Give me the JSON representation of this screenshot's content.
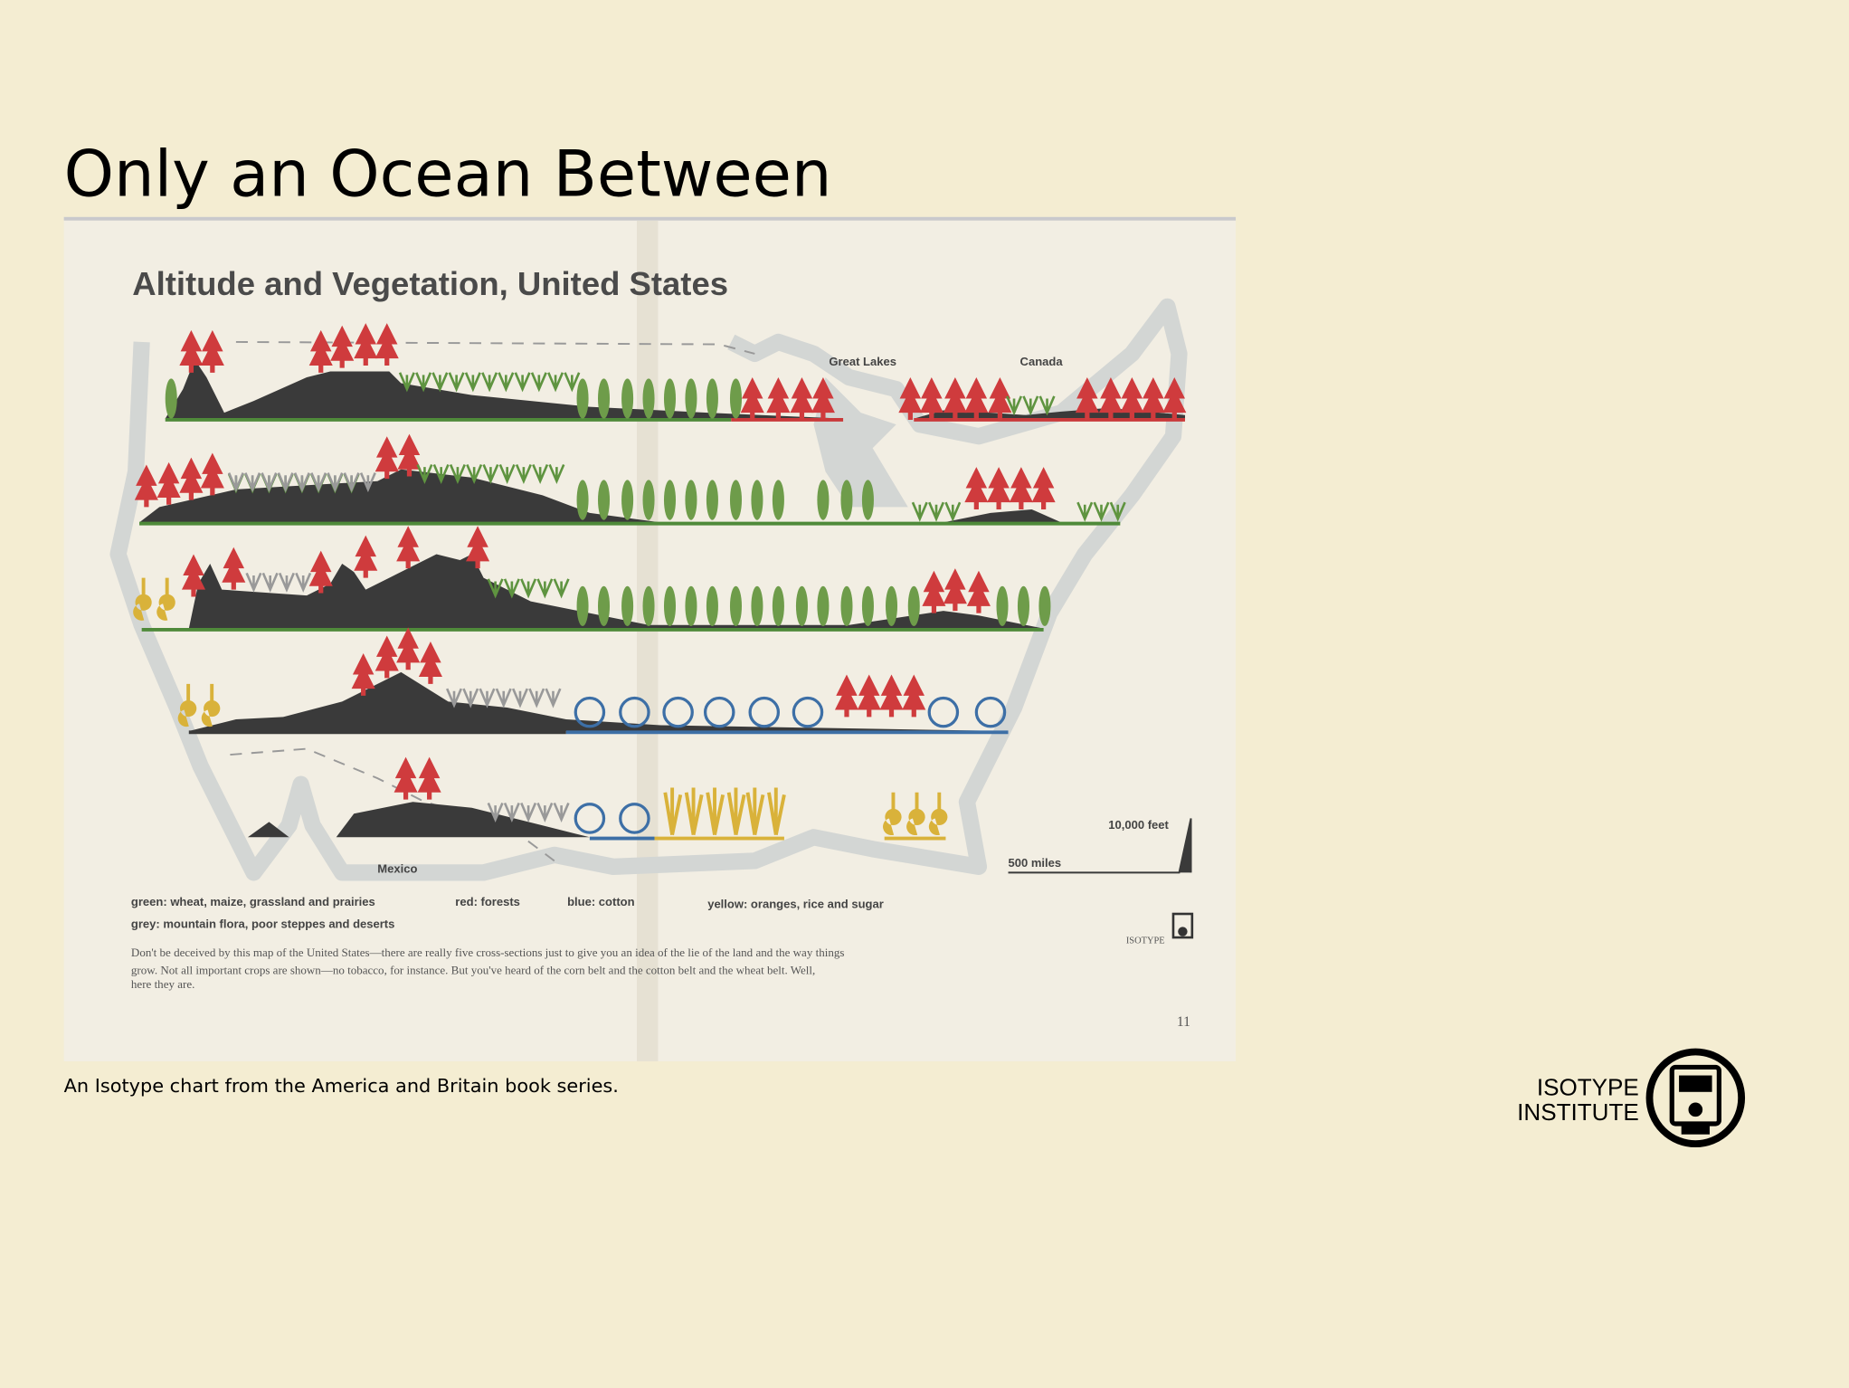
{
  "slide": {
    "title": "Only an Ocean Between",
    "caption": "An Isotype chart from the America and Britain book series.",
    "logo": {
      "line1": "ISOTYPE",
      "line2": "INSTITUTE"
    }
  },
  "image": {
    "title": "Altitude and Vegetation, United States",
    "labels": {
      "great_lakes": "Great Lakes",
      "canada": "Canada",
      "mexico": "Mexico",
      "altitude_scale": "10,000 feet",
      "distance_scale": "500 miles"
    },
    "legend": {
      "green": "green:  wheat,  maize,  grassland  and  prairies",
      "red": "red:  forests",
      "blue": "blue:  cotton",
      "yellow": "yellow:  oranges,  rice  and  sugar",
      "grey": "grey:  mountain  flora,  poor  steppes  and  deserts"
    },
    "note_lines": [
      "Don't be deceived by this map of the United States—there are really five cross-sections just to give you an idea of the lie of the land and the way things",
      "grow.  Not all important crops are shown—no tobacco, for instance.  But you've heard of the corn belt and the cotton belt and the wheat belt.  Well,",
      "here they are."
    ],
    "mark": "ISOTYPE",
    "page_number": "11"
  }
}
